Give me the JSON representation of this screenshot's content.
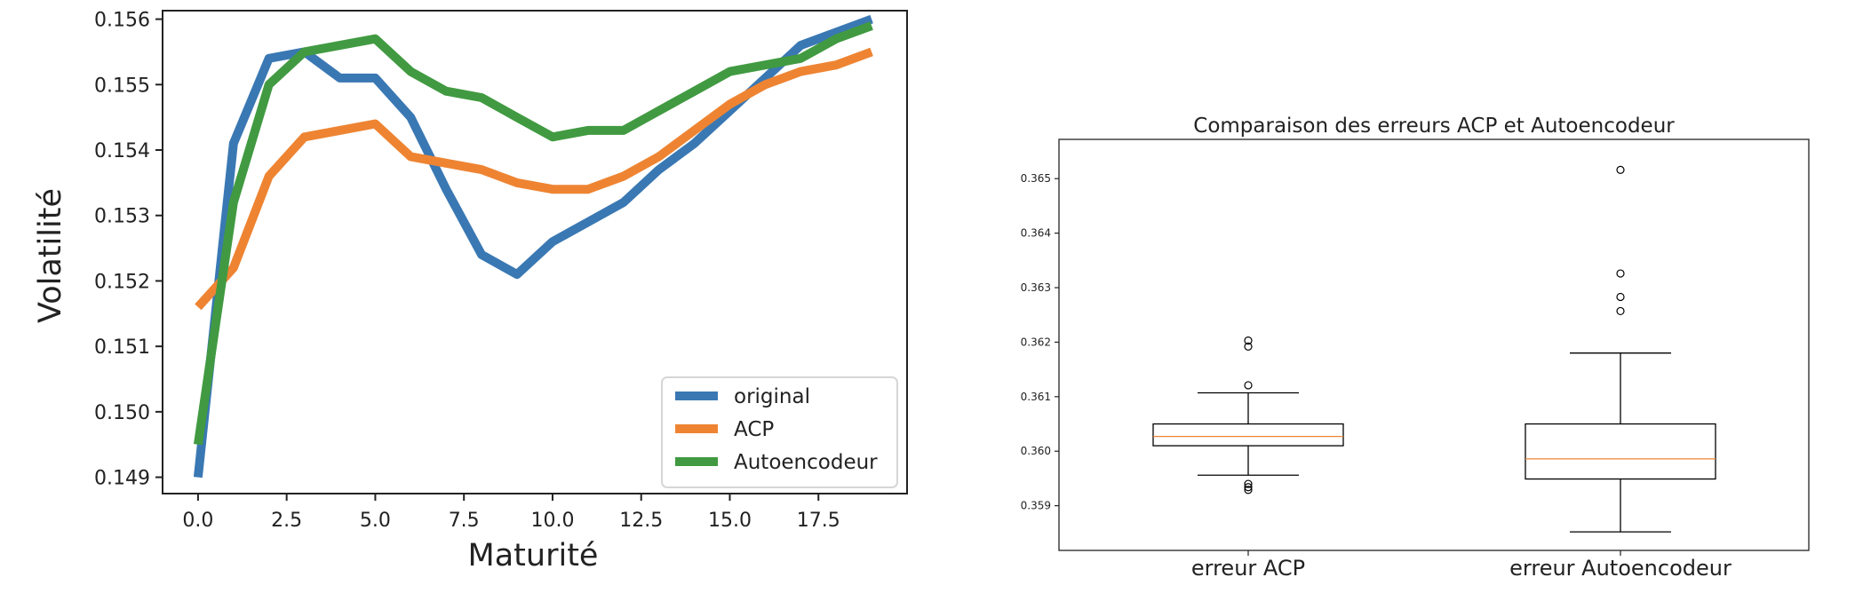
{
  "chart_data": [
    {
      "type": "line",
      "xlabel": "Maturité",
      "ylabel": "Volatilité",
      "xlim": [
        -1,
        20
      ],
      "ylim": [
        0.14875,
        0.15613
      ],
      "x_ticks": [
        0.0,
        2.5,
        5.0,
        7.5,
        10.0,
        12.5,
        15.0,
        17.5
      ],
      "x_tick_labels": [
        "0.0",
        "2.5",
        "5.0",
        "7.5",
        "10.0",
        "12.5",
        "15.0",
        "17.5"
      ],
      "y_ticks": [
        0.149,
        0.15,
        0.151,
        0.152,
        0.153,
        0.154,
        0.155,
        0.156
      ],
      "y_tick_labels": [
        "0.149",
        "0.150",
        "0.151",
        "0.152",
        "0.153",
        "0.154",
        "0.155",
        "0.156"
      ],
      "x": [
        0,
        1,
        2,
        3,
        4,
        5,
        6,
        7,
        8,
        9,
        10,
        11,
        12,
        13,
        14,
        15,
        16,
        17,
        18,
        19
      ],
      "series": [
        {
          "name": "original",
          "color": "#3a78b3",
          "values": [
            0.149,
            0.1541,
            0.1554,
            0.1555,
            0.1551,
            0.1551,
            0.1545,
            0.1534,
            0.1524,
            0.1521,
            0.1526,
            0.1529,
            0.1532,
            0.1537,
            0.1541,
            0.1546,
            0.1551,
            0.1556,
            0.1558,
            0.156
          ]
        },
        {
          "name": "ACP",
          "color": "#ee8432",
          "values": [
            0.1516,
            0.1522,
            0.1536,
            0.1542,
            0.1543,
            0.1544,
            0.1539,
            0.1538,
            0.1537,
            0.1535,
            0.1534,
            0.1534,
            0.1536,
            0.1539,
            0.1543,
            0.1547,
            0.155,
            0.1552,
            0.1553,
            0.1555
          ]
        },
        {
          "name": "Autoencodeur",
          "color": "#419a41",
          "values": [
            0.1495,
            0.1532,
            0.155,
            0.1555,
            0.1556,
            0.1557,
            0.1552,
            0.1549,
            0.1548,
            0.1545,
            0.1542,
            0.1543,
            0.1543,
            0.1546,
            0.1549,
            0.1552,
            0.1553,
            0.1554,
            0.1557,
            0.1559
          ]
        }
      ],
      "legend": "bottom-right",
      "grid": false
    },
    {
      "type": "box",
      "title": "Comparaison des erreurs ACP et Autoencodeur",
      "categories": [
        "erreur ACP",
        "erreur Autoencodeur"
      ],
      "ylim": [
        0.35818,
        0.36572
      ],
      "y_ticks": [
        0.359,
        0.36,
        0.361,
        0.362,
        0.363,
        0.364,
        0.365
      ],
      "y_tick_labels": [
        "0.359",
        "0.360",
        "0.361",
        "0.362",
        "0.363",
        "0.364",
        "0.365"
      ],
      "boxes": [
        {
          "whisker_low": 0.35956,
          "q1": 0.3601,
          "median": 0.36027,
          "q3": 0.3605,
          "whisker_high": 0.36107,
          "outliers": [
            0.36203,
            0.36192,
            0.36121,
            0.3594,
            0.35934,
            0.35929
          ]
        },
        {
          "whisker_low": 0.35852,
          "q1": 0.35949,
          "median": 0.35986,
          "q3": 0.3605,
          "whisker_high": 0.3618,
          "outliers": [
            0.36516,
            0.36326,
            0.36283,
            0.36257
          ]
        }
      ],
      "box_color": "#000000",
      "median_color": "#ee8432",
      "grid": false
    }
  ]
}
